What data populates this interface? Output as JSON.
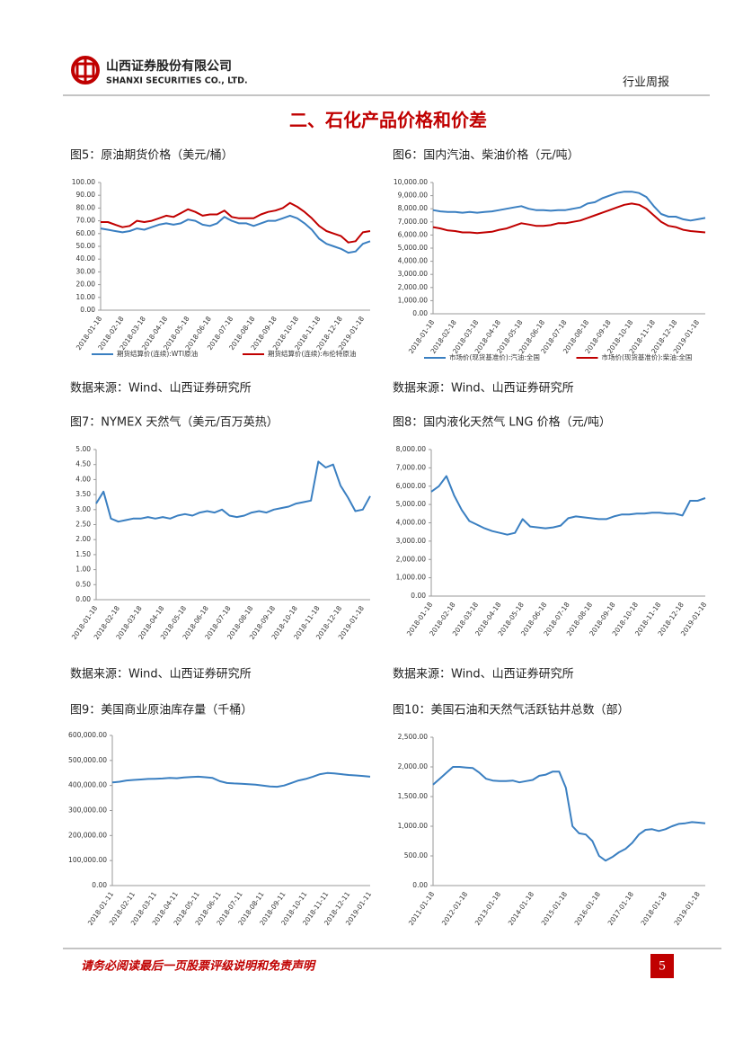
{
  "header": {
    "company": "山西证券股份有限公司",
    "company_en": "SHANXI SECURITIES CO., LTD.",
    "report_type": "行业周报"
  },
  "section_title": "二、石化产品价格和价差",
  "footer": {
    "disclaimer": "请务必阅读最后一页股票评级说明和免责声明",
    "page": "5"
  },
  "chart_data": [
    {
      "type": "line",
      "title": "图5：原油期货价格（美元/桶）",
      "source": "数据来源：Wind、山西证券研究所",
      "legend": "bottom",
      "categories": [
        "2018-01-18",
        null,
        null,
        "2018-02-18",
        null,
        null,
        "2018-03-18",
        null,
        null,
        "2018-04-18",
        null,
        null,
        "2018-05-18",
        null,
        null,
        "2018-06-18",
        null,
        null,
        "2018-07-18",
        null,
        null,
        "2018-08-18",
        null,
        null,
        "2018-09-18",
        null,
        null,
        "2018-10-18",
        null,
        null,
        "2018-11-18",
        null,
        null,
        "2018-12-18",
        null,
        null,
        "2019-01-18",
        null
      ],
      "series": [
        {
          "name": "期货结算价(连续):WTI原油",
          "color": "#3a7fc1",
          "values": [
            64,
            63,
            62,
            61,
            62,
            64,
            63,
            65,
            67,
            68,
            67,
            68,
            71,
            70,
            67,
            66,
            68,
            73,
            70,
            68,
            68,
            66,
            68,
            70,
            70,
            72,
            74,
            72,
            68,
            63,
            56,
            52,
            50,
            48,
            45,
            46,
            52,
            54
          ]
        },
        {
          "name": "期货结算价(连续):布伦特原油",
          "color": "#c00000",
          "values": [
            69,
            69,
            67,
            65,
            66,
            70,
            69,
            70,
            72,
            74,
            73,
            76,
            79,
            77,
            74,
            75,
            75,
            78,
            73,
            72,
            72,
            72,
            75,
            77,
            78,
            80,
            84,
            81,
            77,
            72,
            66,
            62,
            60,
            58,
            53,
            54,
            61,
            62
          ]
        }
      ],
      "ylim": [
        0,
        100
      ],
      "yticks": [
        {
          "value": 0,
          "label": "0.00"
        },
        {
          "value": 10,
          "label": "10.00"
        },
        {
          "value": 20,
          "label": "20.00"
        },
        {
          "value": 30,
          "label": "30.00"
        },
        {
          "value": 40,
          "label": "40.00"
        },
        {
          "value": 50,
          "label": "50.00"
        },
        {
          "value": 60,
          "label": "60.00"
        },
        {
          "value": 70,
          "label": "70.00"
        },
        {
          "value": 80,
          "label": "80.00"
        },
        {
          "value": 90,
          "label": "90.00"
        },
        {
          "value": 100,
          "label": "100.00"
        }
      ]
    },
    {
      "type": "line",
      "title": "图6：国内汽油、柴油价格（元/吨）",
      "source": "数据来源：Wind、山西证券研究所",
      "legend": "bottom",
      "categories": [
        "2018-01-18",
        null,
        null,
        "2018-02-18",
        null,
        null,
        "2018-03-18",
        null,
        null,
        "2018-04-18",
        null,
        null,
        "2018-05-18",
        null,
        null,
        "2018-06-18",
        null,
        null,
        "2018-07-18",
        null,
        null,
        "2018-08-18",
        null,
        null,
        "2018-09-18",
        null,
        null,
        "2018-10-18",
        null,
        null,
        "2018-11-18",
        null,
        null,
        "2018-12-18",
        null,
        null,
        "2019-01-18",
        null
      ],
      "series": [
        {
          "name": "市场价(现货基准价):汽油:全国",
          "color": "#3a7fc1",
          "values": [
            7900,
            7800,
            7750,
            7750,
            7700,
            7750,
            7700,
            7750,
            7800,
            7900,
            8000,
            8100,
            8200,
            8000,
            7900,
            7900,
            7850,
            7900,
            7900,
            8000,
            8100,
            8400,
            8500,
            8800,
            9000,
            9200,
            9300,
            9300,
            9200,
            8900,
            8200,
            7600,
            7400,
            7400,
            7200,
            7100,
            7200,
            7300
          ]
        },
        {
          "name": "市场价(现货基准价):柴油:全国",
          "color": "#c00000",
          "values": [
            6600,
            6500,
            6350,
            6300,
            6200,
            6200,
            6150,
            6200,
            6250,
            6400,
            6500,
            6700,
            6900,
            6800,
            6700,
            6700,
            6750,
            6900,
            6900,
            7000,
            7100,
            7300,
            7500,
            7700,
            7900,
            8100,
            8300,
            8400,
            8300,
            8000,
            7500,
            7000,
            6700,
            6600,
            6400,
            6300,
            6250,
            6200
          ]
        }
      ],
      "ylim": [
        0,
        10000
      ],
      "yticks": [
        {
          "value": 0,
          "label": "0.00"
        },
        {
          "value": 1000,
          "label": "1,000.00"
        },
        {
          "value": 2000,
          "label": "2,000.00"
        },
        {
          "value": 3000,
          "label": "3,000.00"
        },
        {
          "value": 4000,
          "label": "4,000.00"
        },
        {
          "value": 5000,
          "label": "5,000.00"
        },
        {
          "value": 6000,
          "label": "6,000.00"
        },
        {
          "value": 7000,
          "label": "7,000.00"
        },
        {
          "value": 8000,
          "label": "8,000.00"
        },
        {
          "value": 9000,
          "label": "9,000.00"
        },
        {
          "value": 10000,
          "label": "10,000.00"
        }
      ]
    },
    {
      "type": "line",
      "title": "图7：NYMEX 天然气（美元/百万英热）",
      "source": "数据来源：Wind、山西证券研究所",
      "color": "#3a7fc1",
      "categories": [
        "2018-01-18",
        null,
        null,
        "2018-02-18",
        null,
        null,
        "2018-03-18",
        null,
        null,
        "2018-04-18",
        null,
        null,
        "2018-05-18",
        null,
        null,
        "2018-06-18",
        null,
        null,
        "2018-07-18",
        null,
        null,
        "2018-08-18",
        null,
        null,
        "2018-09-18",
        null,
        null,
        "2018-10-18",
        null,
        null,
        "2018-11-18",
        null,
        null,
        "2018-12-18",
        null,
        null,
        "2019-01-18",
        null
      ],
      "values": [
        3.2,
        3.6,
        2.7,
        2.6,
        2.65,
        2.7,
        2.7,
        2.75,
        2.7,
        2.75,
        2.7,
        2.8,
        2.85,
        2.8,
        2.9,
        2.95,
        2.9,
        3.0,
        2.8,
        2.75,
        2.8,
        2.9,
        2.95,
        2.9,
        3.0,
        3.05,
        3.1,
        3.2,
        3.25,
        3.3,
        4.6,
        4.4,
        4.5,
        3.8,
        3.4,
        2.95,
        3.0,
        3.45
      ],
      "ylim": [
        0,
        5
      ],
      "yticks": [
        {
          "value": 0,
          "label": "0.00"
        },
        {
          "value": 0.5,
          "label": "0.50"
        },
        {
          "value": 1,
          "label": "1.00"
        },
        {
          "value": 1.5,
          "label": "1.50"
        },
        {
          "value": 2,
          "label": "2.00"
        },
        {
          "value": 2.5,
          "label": "2.50"
        },
        {
          "value": 3,
          "label": "3.00"
        },
        {
          "value": 3.5,
          "label": "3.50"
        },
        {
          "value": 4,
          "label": "4.00"
        },
        {
          "value": 4.5,
          "label": "4.50"
        },
        {
          "value": 5,
          "label": "5.00"
        }
      ]
    },
    {
      "type": "line",
      "title": "图8：国内液化天然气 LNG 价格（元/吨）",
      "source": "数据来源：Wind、山西证券研究所",
      "color": "#3a7fc1",
      "categories": [
        "2018-01-18",
        null,
        null,
        "2018-02-18",
        null,
        null,
        "2018-03-18",
        null,
        null,
        "2018-04-18",
        null,
        null,
        "2018-05-18",
        null,
        null,
        "2018-06-18",
        null,
        null,
        "2018-07-18",
        null,
        null,
        "2018-08-18",
        null,
        null,
        "2018-09-18",
        null,
        null,
        "2018-10-18",
        null,
        null,
        "2018-11-18",
        null,
        null,
        "2018-12-18",
        null,
        null,
        "2019-01-18"
      ],
      "values": [
        5700,
        6000,
        6550,
        5500,
        4700,
        4100,
        3900,
        3700,
        3550,
        3450,
        3350,
        3450,
        4200,
        3800,
        3750,
        3700,
        3750,
        3850,
        4250,
        4350,
        4300,
        4250,
        4200,
        4200,
        4350,
        4450,
        4450,
        4500,
        4500,
        4550,
        4550,
        4500,
        4500,
        4400,
        5200,
        5200,
        5350
      ],
      "ylim": [
        0,
        8000
      ],
      "yticks": [
        {
          "value": 0,
          "label": "0.00"
        },
        {
          "value": 1000,
          "label": "1,000.00"
        },
        {
          "value": 2000,
          "label": "2,000.00"
        },
        {
          "value": 3000,
          "label": "3,000.00"
        },
        {
          "value": 4000,
          "label": "4,000.00"
        },
        {
          "value": 5000,
          "label": "5,000.00"
        },
        {
          "value": 6000,
          "label": "6,000.00"
        },
        {
          "value": 7000,
          "label": "7,000.00"
        },
        {
          "value": 8000,
          "label": "8,000.00"
        }
      ]
    },
    {
      "type": "line",
      "title": "图9：美国商业原油库存量（千桶）",
      "source": "",
      "color": "#3a7fc1",
      "categories": [
        "2018-01-11",
        null,
        null,
        "2018-02-11",
        null,
        null,
        "2018-03-11",
        null,
        null,
        "2018-04-11",
        null,
        null,
        "2018-05-11",
        null,
        null,
        "2018-06-11",
        null,
        null,
        "2018-07-11",
        null,
        null,
        "2018-08-11",
        null,
        null,
        "2018-09-11",
        null,
        null,
        "2018-10-11",
        null,
        null,
        "2018-11-11",
        null,
        null,
        "2018-12-11",
        null,
        null,
        "2019-01-11"
      ],
      "values": [
        412000,
        415000,
        420000,
        422000,
        424000,
        426000,
        427000,
        428000,
        430000,
        429000,
        432000,
        434000,
        435000,
        433000,
        430000,
        417000,
        410000,
        408000,
        407000,
        405000,
        403000,
        400000,
        396000,
        395000,
        400000,
        410000,
        420000,
        426000,
        435000,
        445000,
        450000,
        448000,
        445000,
        442000,
        440000,
        438000,
        435000
      ],
      "ylim": [
        0,
        600000
      ],
      "yticks": [
        {
          "value": 0,
          "label": "0.00"
        },
        {
          "value": 100000,
          "label": "100,000.00"
        },
        {
          "value": 200000,
          "label": "200,000.00"
        },
        {
          "value": 300000,
          "label": "300,000.00"
        },
        {
          "value": 400000,
          "label": "400,000.00"
        },
        {
          "value": 500000,
          "label": "500,000.00"
        },
        {
          "value": 600000,
          "label": "600,000.00"
        }
      ]
    },
    {
      "type": "line",
      "title": "图10：美国石油和天然气活跃钻井总数（部）",
      "color": "#3a7fc1",
      "categories": [
        "2011-01-18",
        null,
        null,
        null,
        null,
        "2012-01-18",
        null,
        null,
        null,
        null,
        "2013-01-18",
        null,
        null,
        null,
        null,
        "2014-01-18",
        null,
        null,
        null,
        null,
        "2015-01-18",
        null,
        null,
        null,
        null,
        "2016-01-18",
        null,
        null,
        null,
        null,
        "2017-01-18",
        null,
        null,
        null,
        null,
        "2018-01-18",
        null,
        null,
        null,
        null,
        "2019-01-18",
        null
      ],
      "values": [
        1700,
        1800,
        1900,
        2000,
        2000,
        1990,
        1980,
        1900,
        1800,
        1770,
        1760,
        1760,
        1770,
        1740,
        1760,
        1780,
        1850,
        1870,
        1920,
        1920,
        1650,
        1000,
        880,
        860,
        750,
        500,
        420,
        480,
        560,
        620,
        720,
        860,
        940,
        950,
        920,
        950,
        1000,
        1040,
        1050,
        1070,
        1060,
        1050
      ],
      "ylim": [
        0,
        2500
      ],
      "yticks": [
        {
          "value": 0,
          "label": "0.00"
        },
        {
          "value": 500,
          "label": "500.00"
        },
        {
          "value": 1000,
          "label": "1,000.00"
        },
        {
          "value": 1500,
          "label": "1,500.00"
        },
        {
          "value": 2000,
          "label": "2,000.00"
        },
        {
          "value": 2500,
          "label": "2,500.00"
        }
      ]
    }
  ]
}
